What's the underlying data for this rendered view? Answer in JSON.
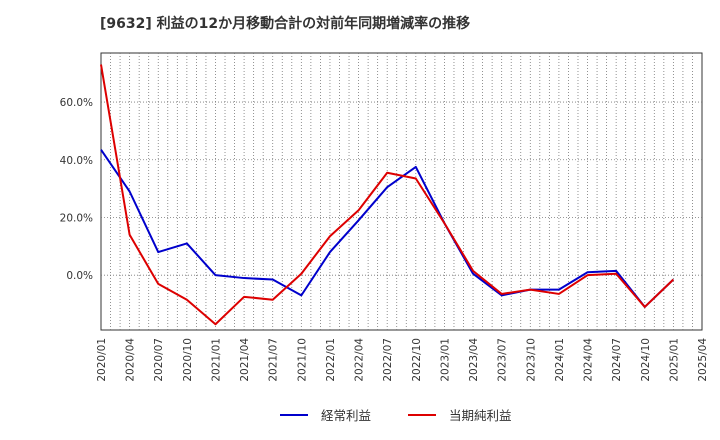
{
  "chart_data": {
    "type": "line",
    "title": "[9632]  利益の12か月移動合計の対前年同期増減率の推移",
    "xlabel": "",
    "ylabel": "",
    "x_tick_labels": [
      "2020/01",
      "2020/04",
      "2020/07",
      "2020/10",
      "2021/01",
      "2021/04",
      "2021/07",
      "2021/10",
      "2022/01",
      "2022/04",
      "2022/07",
      "2022/10",
      "2023/01",
      "2023/04",
      "2023/07",
      "2023/10",
      "2024/01",
      "2024/04",
      "2024/07",
      "2024/10",
      "2025/01",
      "2025/04"
    ],
    "y_tick_labels": [
      "0.0%",
      "20.0%",
      "40.0%",
      "60.0%"
    ],
    "y_ticks": [
      0,
      20,
      40,
      60
    ],
    "ylim": [
      -19,
      77
    ],
    "grid": true,
    "legend_position": "bottom-center",
    "series": [
      {
        "name": "経常利益",
        "color": "#0000cc",
        "values": [
          43.5,
          29,
          8,
          11,
          0,
          -1,
          -1.5,
          -7,
          8,
          19,
          30.5,
          37.5,
          18,
          0.5,
          -7,
          -5,
          -5,
          1,
          1.5,
          -11,
          -1.5
        ]
      },
      {
        "name": "当期純利益",
        "color": "#dd0000",
        "values": [
          73,
          14,
          -3,
          -8.5,
          -17,
          -7.5,
          -8.5,
          0.5,
          13.5,
          22.5,
          35.5,
          33.5,
          18,
          1.5,
          -6.5,
          -5,
          -6.5,
          0,
          0.5,
          -11,
          -1.5
        ]
      }
    ]
  }
}
